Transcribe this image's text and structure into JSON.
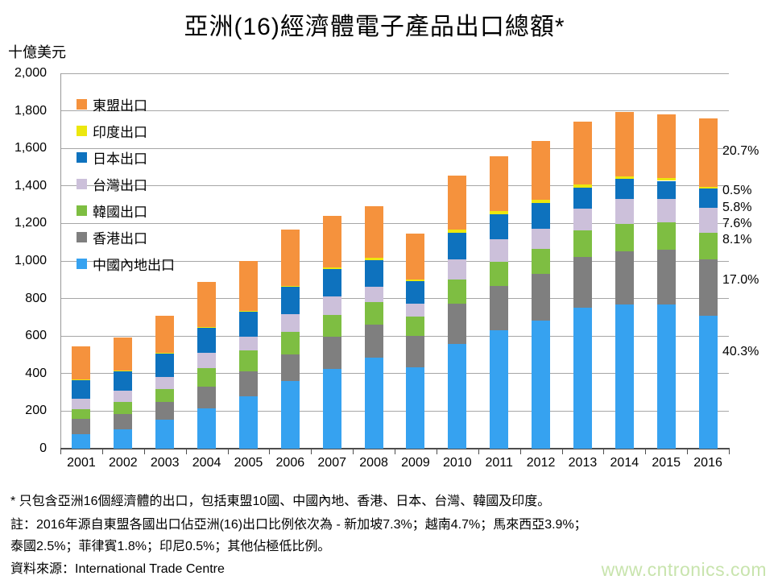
{
  "page": {
    "title": "亞洲(16)經濟體電子產品出口總額*",
    "y_axis_unit_label": "十億美元",
    "footnotes": [
      "* 只包含亞洲16個經濟體的出口，包括東盟10國、中國內地、香港、日本、台灣、韓國及印度。",
      "註：2016年源自東盟各國出口佔亞洲(16)出口比例依次為 - 新加坡7.3%；越南4.7%；馬來西亞3.9%；",
      "泰國2.5%；菲律賓1.8%；印尼0.5%；其他佔極低比例。"
    ],
    "source_line": "資料來源：International Trade Centre",
    "watermark": "www.cntronics.com"
  },
  "chart_data": {
    "type": "bar",
    "stacked": true,
    "title": "亞洲(16)經濟體電子產品出口總額*",
    "ylabel": "十億美元",
    "ylim": [
      0,
      2000
    ],
    "ytick_step": 200,
    "grid": true,
    "legend_position": "inside-top-left",
    "categories": [
      "2001",
      "2002",
      "2003",
      "2004",
      "2005",
      "2006",
      "2007",
      "2008",
      "2009",
      "2010",
      "2011",
      "2012",
      "2013",
      "2014",
      "2015",
      "2016"
    ],
    "series": [
      {
        "name": "中國內地出口",
        "color": "#36a2f0",
        "values": [
          77,
          105,
          154,
          216,
          280,
          360,
          427,
          485,
          434,
          559,
          633,
          682,
          750,
          769,
          769,
          708
        ]
      },
      {
        "name": "香港出口",
        "color": "#7f7f7f",
        "values": [
          80,
          81,
          93,
          116,
          134,
          142,
          170,
          176,
          167,
          212,
          234,
          248,
          273,
          282,
          291,
          299
        ]
      },
      {
        "name": "韓國出口",
        "color": "#7ebe42",
        "values": [
          53,
          64,
          71,
          99,
          109,
          121,
          115,
          118,
          102,
          131,
          127,
          135,
          139,
          146,
          144,
          142
        ]
      },
      {
        "name": "台灣出口",
        "color": "#ccc0da",
        "values": [
          57,
          58,
          64,
          78,
          74,
          92,
          99,
          85,
          71,
          106,
          120,
          107,
          116,
          135,
          128,
          134
        ]
      },
      {
        "name": "日本出口",
        "color": "#0e72be",
        "values": [
          99,
          103,
          125,
          136,
          133,
          146,
          145,
          142,
          117,
          142,
          134,
          136,
          113,
          106,
          95,
          102
        ]
      },
      {
        "name": "印度出口",
        "color": "#ece70e",
        "values": [
          2,
          4,
          5,
          5,
          6,
          7,
          10,
          13,
          12,
          16,
          18,
          17,
          15,
          12,
          14,
          9
        ]
      },
      {
        "name": "東盟出口",
        "color": "#f5923d",
        "values": [
          176,
          177,
          198,
          238,
          265,
          298,
          273,
          271,
          241,
          289,
          294,
          313,
          337,
          343,
          342,
          364
        ]
      }
    ],
    "legend_top_to_bottom": [
      "東盟出口",
      "印度出口",
      "日本出口",
      "台灣出口",
      "韓國出口",
      "香港出口",
      "中國內地出口"
    ],
    "right_share_labels_2016": [
      {
        "series": "東盟出口",
        "label": "20.7%"
      },
      {
        "series": "印度出口",
        "label": "0.5%"
      },
      {
        "series": "日本出口",
        "label": "5.8%"
      },
      {
        "series": "台灣出口",
        "label": "7.6%"
      },
      {
        "series": "韓國出口",
        "label": "8.1%"
      },
      {
        "series": "香港出口",
        "label": "17.0%"
      },
      {
        "series": "中國內地出口",
        "label": "40.3%"
      }
    ]
  }
}
